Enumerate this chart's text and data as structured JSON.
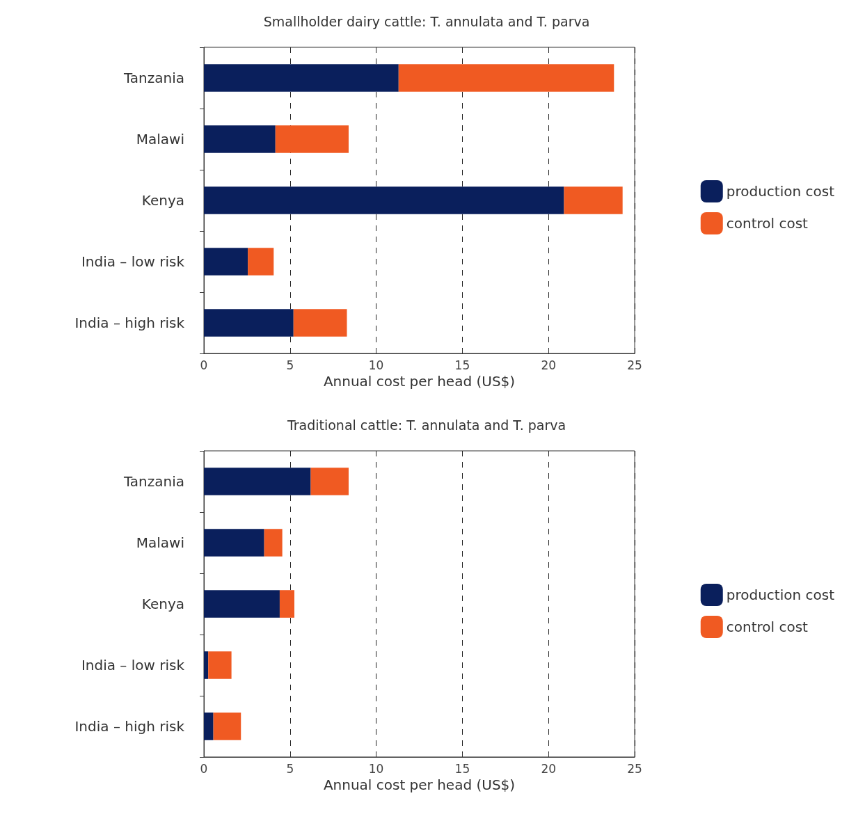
{
  "chart_data": [
    {
      "type": "bar",
      "title": "Smallholder dairy cattle: T. annulata and T. parva",
      "xlabel": "Annual cost per head (US$)",
      "orientation": "horizontal",
      "stacked": true,
      "categories": [
        "Tanzania",
        "Malawi",
        "Kenya",
        "India – low risk",
        "India – high risk"
      ],
      "series": [
        {
          "name": "production cost",
          "color": "#0a1f5c",
          "values": [
            11.3,
            4.15,
            20.9,
            2.55,
            5.2
          ]
        },
        {
          "name": "control cost",
          "color": "#f05a22",
          "values": [
            12.5,
            4.25,
            3.4,
            1.5,
            3.1
          ]
        }
      ],
      "xlim": [
        0,
        25
      ],
      "xticks": [
        0,
        5,
        10,
        15,
        20,
        25
      ],
      "grid": "x",
      "legend": "right"
    },
    {
      "type": "bar",
      "title": "Traditional cattle: T. annulata and T. parva",
      "xlabel": "Annual cost per head (US$)",
      "orientation": "horizontal",
      "stacked": true,
      "categories": [
        "Tanzania",
        "Malawi",
        "Kenya",
        "India – low risk",
        "India – high risk"
      ],
      "series": [
        {
          "name": "production cost",
          "color": "#0a1f5c",
          "values": [
            6.2,
            3.5,
            4.4,
            0.25,
            0.55
          ]
        },
        {
          "name": "control cost",
          "color": "#f05a22",
          "values": [
            2.2,
            1.05,
            0.85,
            1.35,
            1.6
          ]
        }
      ],
      "xlim": [
        0,
        25
      ],
      "xticks": [
        0,
        5,
        10,
        15,
        20,
        25
      ],
      "grid": "x",
      "legend": "right"
    }
  ]
}
